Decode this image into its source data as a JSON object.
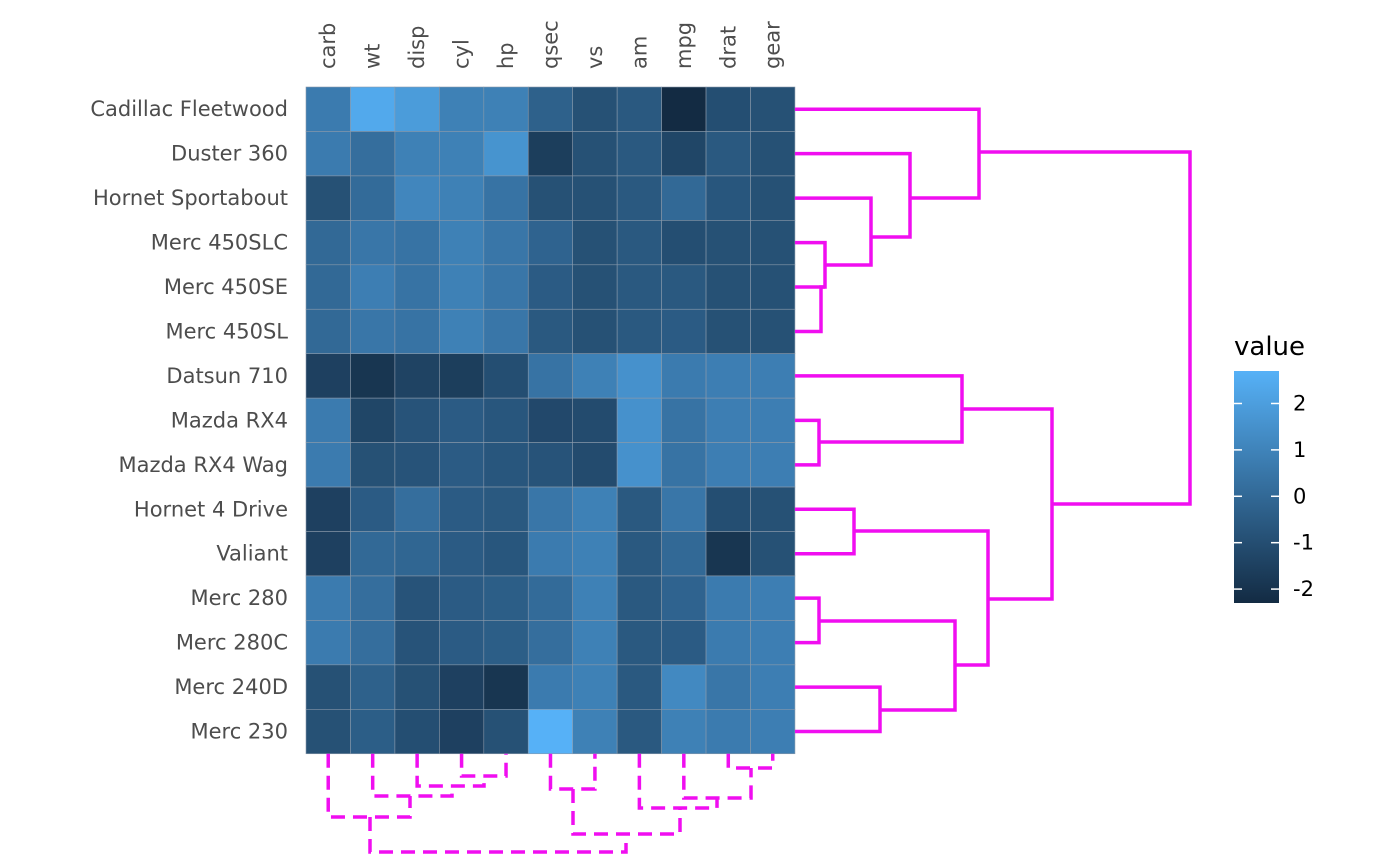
{
  "chart_data": {
    "type": "heatmap",
    "columns": [
      "carb",
      "wt",
      "disp",
      "cyl",
      "hp",
      "qsec",
      "vs",
      "am",
      "mpg",
      "drat",
      "gear"
    ],
    "rows": [
      "Cadillac Fleetwood",
      "Duster 360",
      "Hornet Sportabout",
      "Merc 450SLC",
      "Merc 450SE",
      "Merc 450SL",
      "Datsun 710",
      "Mazda RX4",
      "Mazda RX4 Wag",
      "Hornet 4 Drive",
      "Valiant",
      "Merc 280",
      "Merc 280C",
      "Merc 240D",
      "Merc 230"
    ],
    "values": [
      [
        0.7,
        2.4,
        1.9,
        0.9,
        0.9,
        -0.3,
        -0.9,
        -0.6,
        -2.3,
        -1.0,
        -0.9
      ],
      [
        0.7,
        0.2,
        0.9,
        0.9,
        1.6,
        -1.6,
        -0.9,
        -0.6,
        -1.3,
        -0.6,
        -0.9
      ],
      [
        -0.9,
        0.1,
        1.1,
        0.9,
        0.4,
        -0.9,
        -0.9,
        -0.6,
        0.0,
        -0.7,
        -0.9
      ],
      [
        0.0,
        0.5,
        0.4,
        0.9,
        0.5,
        -0.2,
        -0.9,
        -0.6,
        -1.0,
        -0.9,
        -0.9
      ],
      [
        0.0,
        0.8,
        0.4,
        0.9,
        0.5,
        -0.5,
        -0.9,
        -0.6,
        -0.6,
        -0.9,
        -0.9
      ],
      [
        0.0,
        0.5,
        0.4,
        0.9,
        0.5,
        -0.6,
        -0.9,
        -0.6,
        -0.5,
        -0.9,
        -0.9
      ],
      [
        -1.5,
        -1.9,
        -1.4,
        -1.6,
        -1.0,
        0.4,
        0.9,
        1.5,
        0.7,
        0.8,
        0.8
      ],
      [
        0.7,
        -1.3,
        -0.8,
        -0.5,
        -0.7,
        -1.2,
        -1.1,
        1.5,
        0.4,
        0.8,
        0.8
      ],
      [
        0.7,
        -0.9,
        -0.8,
        -0.5,
        -0.7,
        -0.8,
        -1.1,
        1.5,
        0.4,
        0.8,
        0.8
      ],
      [
        -1.5,
        -0.5,
        0.2,
        -0.5,
        -0.6,
        0.5,
        0.9,
        -0.6,
        0.5,
        -1.0,
        -0.9
      ],
      [
        -1.5,
        0.0,
        -0.1,
        -0.5,
        -0.7,
        0.7,
        0.9,
        -0.6,
        0.0,
        -1.9,
        -0.9
      ],
      [
        0.7,
        0.2,
        -0.8,
        -0.5,
        -0.4,
        0.1,
        0.9,
        -0.6,
        -0.2,
        0.7,
        0.8
      ],
      [
        0.7,
        0.2,
        -0.8,
        -0.5,
        -0.4,
        0.2,
        0.9,
        -0.6,
        -0.5,
        0.7,
        0.8
      ],
      [
        -0.9,
        -0.3,
        -0.9,
        -1.5,
        -1.9,
        0.7,
        0.9,
        -0.6,
        1.2,
        0.5,
        0.8
      ],
      [
        -0.9,
        -0.4,
        -1.0,
        -1.5,
        -0.9,
        2.7,
        0.9,
        -0.6,
        0.9,
        0.7,
        0.8
      ]
    ],
    "colorscale": {
      "low": "#132B43",
      "high": "#56B1F7",
      "min": -2.3,
      "max": 2.7
    },
    "legend": {
      "title": "value",
      "ticks": [
        2,
        1,
        0,
        -1,
        -2
      ],
      "placement": "right"
    },
    "dendrogram_color": "#F00EF0",
    "row_dendrogram": {
      "style": "solid",
      "side": "right"
    },
    "column_dendrogram": {
      "style": "dashed",
      "side": "bottom"
    },
    "grid": false
  }
}
